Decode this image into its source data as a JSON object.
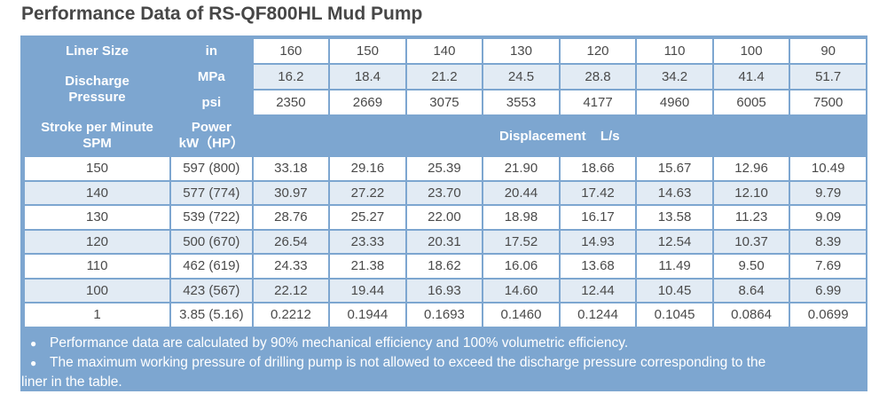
{
  "title": "Performance Data of RS-QF800HL Mud Pump",
  "header": {
    "liner_size_label": "Liner Size",
    "liner_unit": "in",
    "liner_sizes": [
      "160",
      "150",
      "140",
      "130",
      "120",
      "110",
      "100",
      "90"
    ],
    "discharge_label": "Discharge Pressure",
    "mpa_unit": "MPa",
    "mpa_values": [
      "16.2",
      "18.4",
      "21.2",
      "24.5",
      "28.8",
      "34.2",
      "41.4",
      "51.7"
    ],
    "psi_unit": "psi",
    "psi_values": [
      "2350",
      "2669",
      "3075",
      "3553",
      "4177",
      "4960",
      "6005",
      "7500"
    ],
    "stroke_label_line1": "Stroke per Minute",
    "stroke_label_line2": "SPM",
    "power_label_line1": "Power",
    "power_label_line2": "kW（HP）",
    "displacement_label": "Displacement  L/s"
  },
  "rows": [
    {
      "spm": "150",
      "power": "597 (800)",
      "values": [
        "33.18",
        "29.16",
        "25.39",
        "21.90",
        "18.66",
        "15.67",
        "12.96",
        "10.49"
      ]
    },
    {
      "spm": "140",
      "power": "577 (774)",
      "values": [
        "30.97",
        "27.22",
        "23.70",
        "20.44",
        "17.42",
        "14.63",
        "12.10",
        "9.79"
      ]
    },
    {
      "spm": "130",
      "power": "539 (722)",
      "values": [
        "28.76",
        "25.27",
        "22.00",
        "18.98",
        "16.17",
        "13.58",
        "11.23",
        "9.09"
      ]
    },
    {
      "spm": "120",
      "power": "500 (670)",
      "values": [
        "26.54",
        "23.33",
        "20.31",
        "17.52",
        "14.93",
        "12.54",
        "10.37",
        "8.39"
      ]
    },
    {
      "spm": "110",
      "power": "462 (619)",
      "values": [
        "24.33",
        "21.38",
        "18.62",
        "16.06",
        "13.68",
        "11.49",
        "9.50",
        "7.69"
      ]
    },
    {
      "spm": "100",
      "power": "423 (567)",
      "values": [
        "22.12",
        "19.44",
        "16.93",
        "14.60",
        "12.44",
        "10.45",
        "8.64",
        "6.99"
      ]
    },
    {
      "spm": "1",
      "power": "3.85 (5.16)",
      "values": [
        "0.2212",
        "0.1944",
        "0.1693",
        "0.1460",
        "0.1244",
        "0.1045",
        "0.0864",
        "0.0699"
      ]
    }
  ],
  "notes": {
    "bullet": "●",
    "note1": "Performance data are calculated by 90% mechanical efficiency and 100% volumetric efficiency.",
    "note2_line1": "The maximum working pressure of drilling pump is not allowed to exceed the discharge pressure corresponding to the",
    "note2_line2": "liner in the table."
  },
  "colors": {
    "header_blue": "#7da6d0",
    "light_row": "#e2ebf4",
    "white_row": "#ffffff",
    "title_text": "#474747"
  }
}
